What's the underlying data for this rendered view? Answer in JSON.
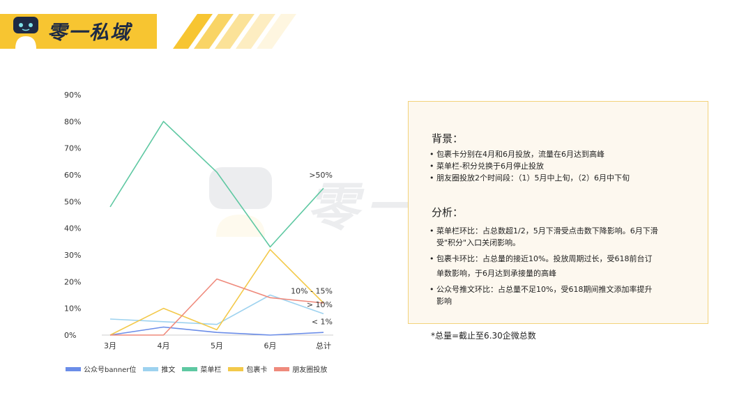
{
  "header": {
    "brand": "零一私域"
  },
  "watermark": {
    "text": "零一私域"
  },
  "colors": {
    "header_yellow": "#f7c531",
    "panel_bg": "#fdf8ef",
    "panel_border": "#f3d27a"
  },
  "chart_data": {
    "type": "line",
    "categories": [
      "3月",
      "4月",
      "5月",
      "6月",
      "总计"
    ],
    "ylim": [
      0,
      90
    ],
    "yticks": [
      "0%",
      "10%",
      "20%",
      "30%",
      "40%",
      "50%",
      "60%",
      "70%",
      "80%",
      "90%"
    ],
    "grid": false,
    "legend_position": "bottom",
    "series": [
      {
        "name": "公众号banner位",
        "color": "#6b8de8",
        "values": [
          0,
          3,
          1,
          0,
          1
        ]
      },
      {
        "name": "推文",
        "color": "#9dd2ef",
        "values": [
          6,
          5,
          4,
          15,
          8
        ]
      },
      {
        "name": "菜单栏",
        "color": "#5ec8a2",
        "values": [
          48,
          80,
          61,
          33,
          55
        ]
      },
      {
        "name": "包裹卡",
        "color": "#f3c94a",
        "values": [
          0,
          10,
          2,
          32,
          12
        ]
      },
      {
        "name": "朋友圈投放",
        "color": "#ef8a7c",
        "values": [
          0,
          0,
          21,
          14,
          12
        ]
      }
    ],
    "annotations": [
      {
        "text": ">50%",
        "x": "总计",
        "y": 59
      },
      {
        "text": "10% - 15%",
        "x": "总计",
        "y": 15.5
      },
      {
        "text": "> 10%",
        "x": "总计",
        "y": 10.5
      },
      {
        "text": "< 1%",
        "x": "总计",
        "y": 4
      }
    ]
  },
  "panel": {
    "background_heading": "背景：",
    "background_items": [
      "包裹卡分别在4月和6月投放，流量在6月达到高峰",
      "菜单栏-积分兑换于6月停止投放",
      "朋友圈投放2个时间段：（1）5月中上旬，（2）6月中下旬"
    ],
    "analysis_heading": "分析：",
    "analysis_items": [
      "菜单栏环比：占总数超1/2，5月下滑受点击数下降影响。6月下滑受\"积分\"入口关闭影响。",
      "包裹卡环比：占总量的接近10%。投放周期过长，受618前台订单数影响，于6月达到承接量的高峰",
      "公众号推文环比：占总量不足10%，受618期间推文添加率提升影响"
    ]
  },
  "footnote": "*总量=截止至6.30企微总数"
}
